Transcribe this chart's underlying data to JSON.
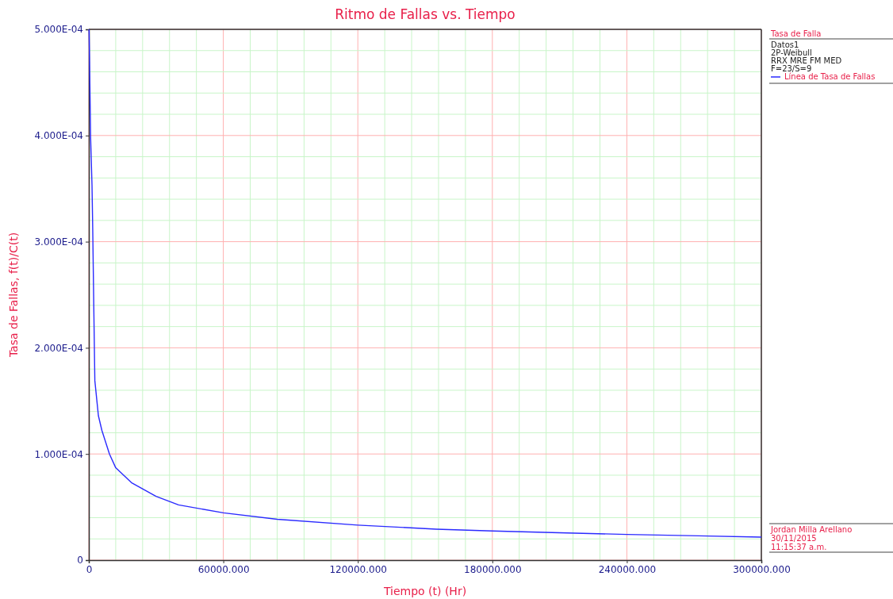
{
  "chart_data": {
    "type": "line",
    "title": "Ritmo de Fallas vs. Tiempo",
    "xlabel": "Tiempo (t) (Hr)",
    "ylabel": "Tasa de Fallas, f(t)/C(t)",
    "legend_title": "Tasa de Falla",
    "legend": "right",
    "grid": true,
    "marker": "none",
    "line_style": "solid",
    "annotations": [
      "Datos1",
      "2P-Weibull",
      "RRX MRE FM MED",
      "F=23/S=9",
      "Jordan Milla Arellano",
      "30/11/2015",
      "11:15:37 a.m."
    ],
    "xlim": [
      0,
      300000
    ],
    "ylim": [
      0,
      0.0005
    ],
    "xticks": [
      0,
      {
        "value": 12000,
        "label": null
      },
      {
        "value": 24000,
        "label": null
      },
      {
        "value": 36000,
        "label": null
      },
      {
        "value": 48000,
        "label": null
      },
      {
        "value": 60000,
        "label": "60000.000"
      },
      {
        "value": 72000,
        "label": null
      },
      {
        "value": 84000,
        "label": null
      },
      {
        "value": 96000,
        "label": null
      },
      {
        "value": 108000,
        "label": null
      },
      {
        "value": 120000,
        "label": "120000.000"
      },
      {
        "value": 132000,
        "label": null
      },
      {
        "value": 144000,
        "label": null
      },
      {
        "value": 156000,
        "label": null
      },
      {
        "value": 168000,
        "label": null
      },
      {
        "value": 180000,
        "label": "180000.000"
      },
      {
        "value": 192000,
        "label": null
      },
      {
        "value": 204000,
        "label": null
      },
      {
        "value": 216000,
        "label": null
      },
      {
        "value": 228000,
        "label": null
      },
      {
        "value": 240000,
        "label": "240000.000"
      },
      {
        "value": 252000,
        "label": null
      },
      {
        "value": 264000,
        "label": null
      },
      {
        "value": 276000,
        "label": null
      },
      {
        "value": 288000,
        "label": null
      },
      {
        "value": 300000,
        "label": "300000.000"
      }
    ],
    "yticks": [
      0,
      {
        "value": 2e-05,
        "label": null
      },
      {
        "value": 4e-05,
        "label": null
      },
      {
        "value": 6e-05,
        "label": null
      },
      {
        "value": 8e-05,
        "label": null
      },
      {
        "value": 0.0001,
        "label": "1.000E-04"
      },
      {
        "value": 0.00012,
        "label": null
      },
      {
        "value": 0.00014,
        "label": null
      },
      {
        "value": 0.00016,
        "label": null
      },
      {
        "value": 0.00018,
        "label": null
      },
      {
        "value": 0.0002,
        "label": "2.000E-04"
      },
      {
        "value": 0.00022,
        "label": null
      },
      {
        "value": 0.00024,
        "label": null
      },
      {
        "value": 0.00026,
        "label": null
      },
      {
        "value": 0.00028,
        "label": null
      },
      {
        "value": 0.0003,
        "label": "3.000E-04"
      },
      {
        "value": 0.00032,
        "label": null
      },
      {
        "value": 0.00034,
        "label": null
      },
      {
        "value": 0.00036,
        "label": null
      },
      {
        "value": 0.00038,
        "label": null
      },
      {
        "value": 0.0004,
        "label": "4.000E-04"
      },
      {
        "value": 0.00042,
        "label": null
      },
      {
        "value": 0.00044,
        "label": null
      },
      {
        "value": 0.00046,
        "label": null
      },
      {
        "value": 0.00048,
        "label": null
      },
      {
        "value": 0.0005,
        "label": "5.000E-04"
      }
    ],
    "series": [
      {
        "name": "Línea de Tasa de Fallas",
        "color": "#2a2aff",
        "x": [
          100,
          316,
          790,
          1420,
          1740,
          2210,
          2690,
          4270,
          5850,
          9200,
          12000,
          19000,
          30000,
          40000,
          60000,
          84000,
          120000,
          155000,
          180000,
          210000,
          240000,
          272000,
          300000
        ],
        "values": [
          0.0005,
          0.000473,
          0.000399,
          0.000353,
          0.000312,
          0.000239,
          0.000169,
          0.000136,
          0.000122,
          0.0001,
          8.7e-05,
          7.3e-05,
          6e-05,
          5.2e-05,
          4.46e-05,
          3.85e-05,
          3.3e-05,
          2.92e-05,
          2.75e-05,
          2.58e-05,
          2.42e-05,
          2.29e-05,
          2.17e-05
        ]
      }
    ]
  }
}
